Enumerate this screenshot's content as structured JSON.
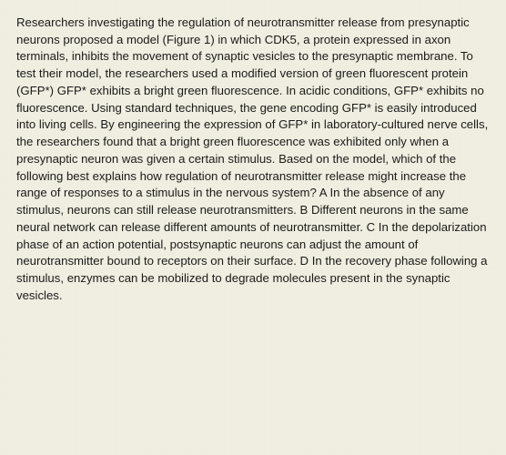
{
  "passage": {
    "text": "Researchers investigating the regulation of neurotransmitter release from presynaptic neurons proposed a model (Figure 1) in which CDK5, a protein expressed in axon terminals, inhibits the movement of synaptic vesicles to the presynaptic membrane. To test their model, the researchers used a modified version of green fluorescent protein (GFP*) GFP* exhibits a bright green fluorescence. In acidic conditions, GFP* exhibits no fluorescence. Using standard techniques, the gene encoding GFP* is easily introduced into living cells. By engineering the expression of GFP* in laboratory-cultured nerve cells, the researchers found that a bright green fluorescence was exhibited only when a presynaptic neuron was given a certain stimulus. Based on the model, which of the following best explains how regulation of neurotransmitter release might increase the range of responses to a stimulus in the nervous system? A In the absence of any stimulus, neurons can still release neurotransmitters. B Different neurons in the same neural network can release different amounts of neurotransmitter. C In the depolarization phase of an action potential, postsynaptic neurons can adjust the amount of neurotransmitter bound to receptors on their surface. D In the recovery phase following a stimulus, enzymes can be mobilized to degrade molecules present in the synaptic vesicles."
  },
  "style": {
    "background_color": "#f1efe1",
    "text_color": "#1a1a1a",
    "font_size": 13.2,
    "line_height": 1.42
  }
}
